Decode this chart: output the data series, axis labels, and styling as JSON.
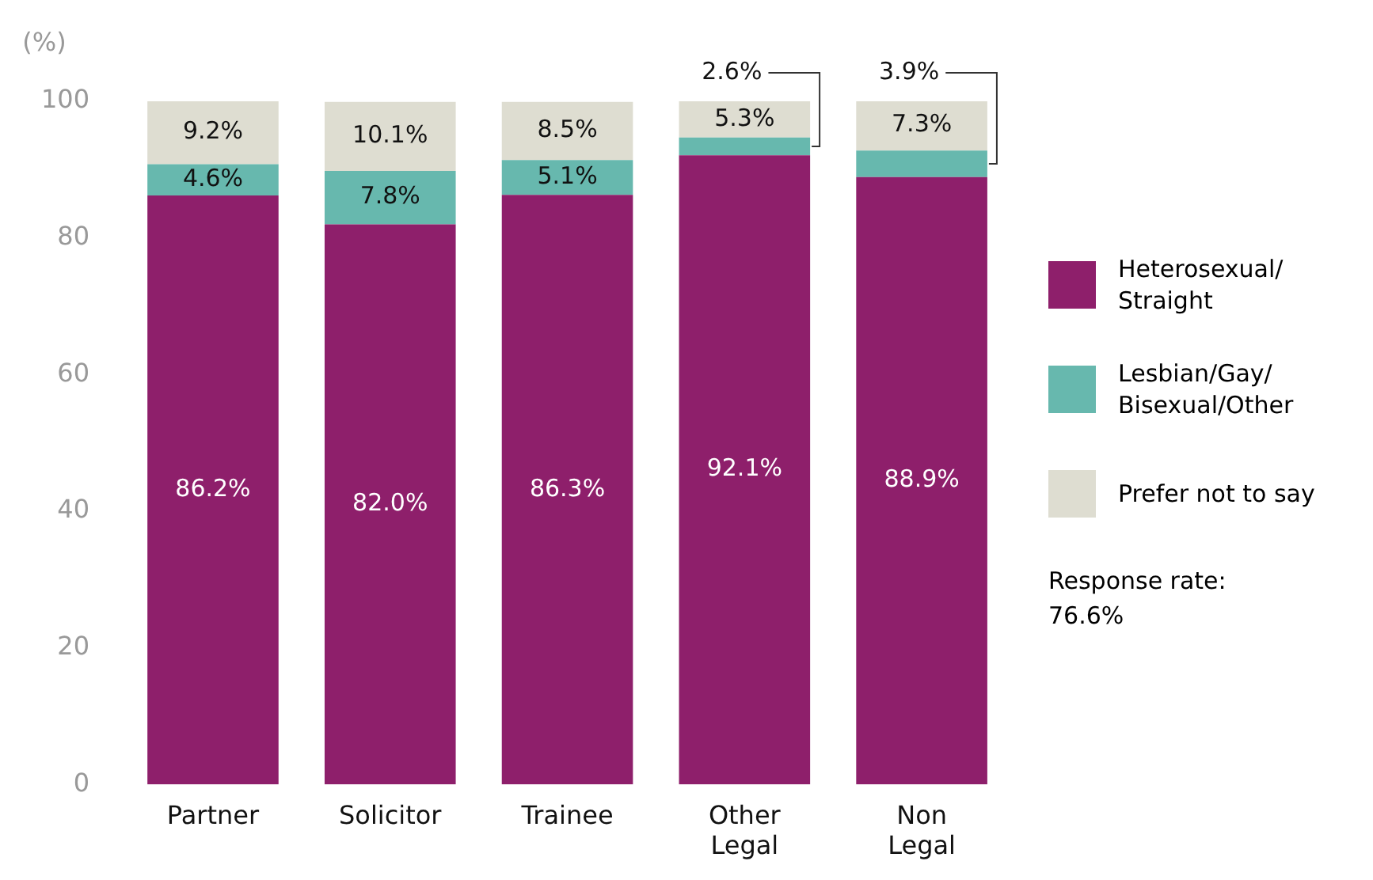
{
  "chart_data": {
    "type": "bar",
    "stacked": true,
    "ylabel": "(%)",
    "categories": [
      "Partner",
      "Solicitor",
      "Trainee",
      "Other Legal",
      "Non Legal"
    ],
    "series": [
      {
        "name": "Heterosexual/Straight",
        "color": "#8e1f6b",
        "values": [
          86.2,
          82.0,
          86.3,
          92.1,
          88.9
        ],
        "value_labels": [
          "86.2%",
          "82.0%",
          "86.3%",
          "92.1%",
          "88.9%"
        ]
      },
      {
        "name": "Lesbian/Gay/Bisexual/Other",
        "color": "#67b8ae",
        "values": [
          4.6,
          7.8,
          5.1,
          2.6,
          3.9
        ],
        "value_labels": [
          "4.6%",
          "7.8%",
          "5.1%",
          "2.6%",
          "3.9%"
        ]
      },
      {
        "name": "Prefer not to say",
        "color": "#deddd1",
        "values": [
          9.2,
          10.1,
          8.5,
          5.3,
          7.3
        ],
        "value_labels": [
          "9.2%",
          "10.1%",
          "8.5%",
          "5.3%",
          "7.3%"
        ]
      }
    ],
    "ylim": [
      0,
      100
    ],
    "yticks": [
      0,
      20,
      40,
      60,
      80,
      100
    ],
    "grid": false,
    "legend": "right",
    "annotations": [
      "Response rate: 76.6%"
    ]
  }
}
